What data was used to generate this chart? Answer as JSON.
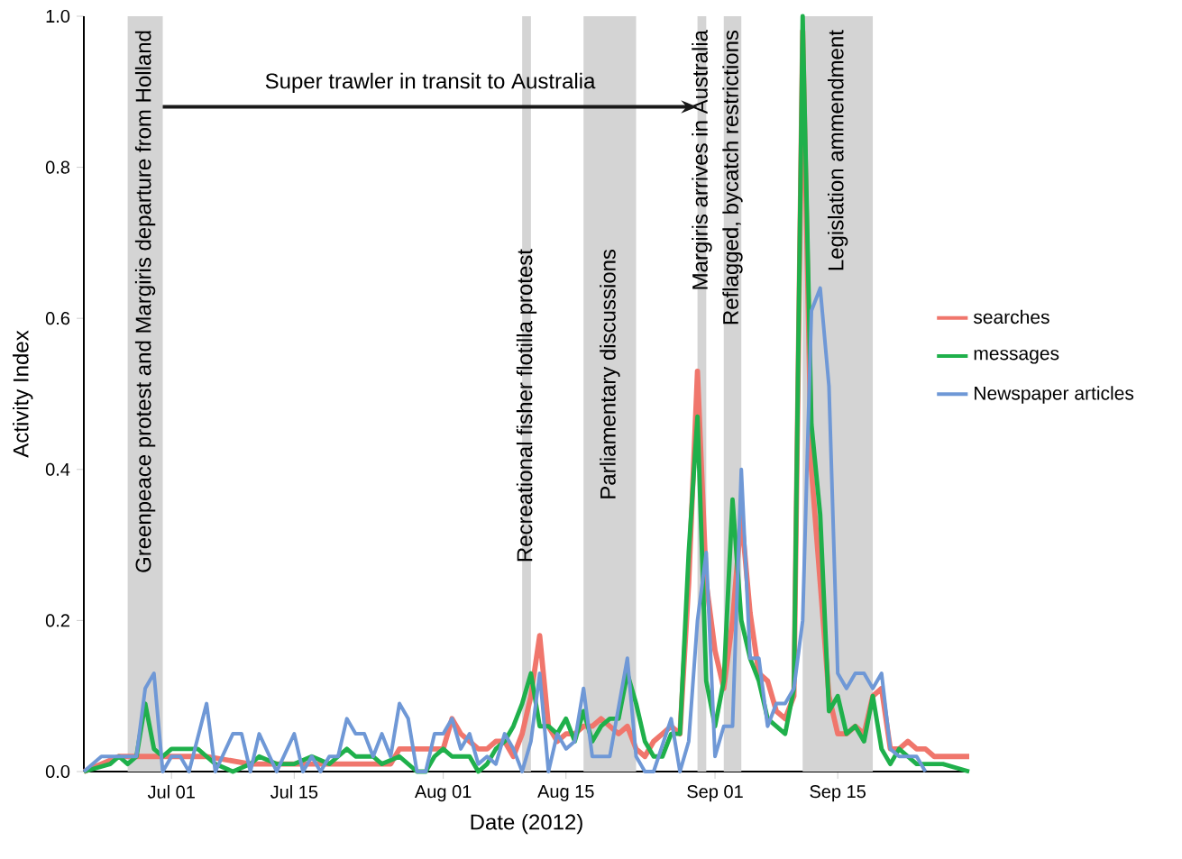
{
  "chart_data": {
    "type": "line",
    "xlabel": "Date (2012)",
    "ylabel": "Activity Index",
    "xlim": [
      "2012-06-21",
      "2012-09-30"
    ],
    "ylim": [
      0,
      1
    ],
    "xticks": [
      {
        "value": "2012-07-01",
        "label": "Jul 01"
      },
      {
        "value": "2012-07-15",
        "label": "Jul 15"
      },
      {
        "value": "2012-08-01",
        "label": "Aug 01"
      },
      {
        "value": "2012-08-15",
        "label": "Aug 15"
      },
      {
        "value": "2012-09-01",
        "label": "Sep 01"
      },
      {
        "value": "2012-09-15",
        "label": "Sep 15"
      }
    ],
    "yticks": [
      {
        "value": 0,
        "label": "0.0"
      },
      {
        "value": 0.2,
        "label": "0.2"
      },
      {
        "value": 0.4,
        "label": "0.4"
      },
      {
        "value": 0.6,
        "label": "0.6"
      },
      {
        "value": 0.8,
        "label": "0.8"
      },
      {
        "value": 1,
        "label": "1.0"
      }
    ],
    "legend": "right",
    "line_style": "solid",
    "bands": [
      {
        "axis": "x",
        "from": "2012-06-26",
        "to": "2012-06-30",
        "label": "Greenpeace protest and Margiris departure from Holland",
        "color": "#d4d4d4"
      },
      {
        "axis": "x",
        "from": "2012-08-10",
        "to": "2012-08-11",
        "label": "Recreational fisher flotilla protest",
        "color": "#d4d4d4"
      },
      {
        "axis": "x",
        "from": "2012-08-17",
        "to": "2012-08-23",
        "label": "Parliamentary discussions",
        "color": "#d4d4d4"
      },
      {
        "axis": "x",
        "from": "2012-08-30",
        "to": "2012-08-31",
        "label": "Margiris arrives in Australia",
        "color": "#d4d4d4"
      },
      {
        "axis": "x",
        "from": "2012-09-02",
        "to": "2012-09-04",
        "label": "Reflagged, bycatch restrictions",
        "color": "#d4d4d4"
      },
      {
        "axis": "x",
        "from": "2012-09-11",
        "to": "2012-09-19",
        "label": "Legislation ammendment",
        "color": "#d4d4d4"
      }
    ],
    "annotations": [
      "Super trawler in transit to Australia"
    ],
    "series": [
      {
        "name": "searches",
        "color": "#f0766c",
        "x": [
          "2012-06-21",
          "2012-06-23",
          "2012-06-25",
          "2012-06-30",
          "2012-07-05",
          "2012-07-10",
          "2012-07-15",
          "2012-07-20",
          "2012-07-26",
          "2012-07-27",
          "2012-07-31",
          "2012-08-01",
          "2012-08-02",
          "2012-08-03",
          "2012-08-04",
          "2012-08-05",
          "2012-08-06",
          "2012-08-07",
          "2012-08-08",
          "2012-08-09",
          "2012-08-10",
          "2012-08-11",
          "2012-08-12",
          "2012-08-13",
          "2012-08-14",
          "2012-08-15",
          "2012-08-16",
          "2012-08-17",
          "2012-08-18",
          "2012-08-19",
          "2012-08-20",
          "2012-08-21",
          "2012-08-22",
          "2012-08-23",
          "2012-08-24",
          "2012-08-25",
          "2012-08-26",
          "2012-08-27",
          "2012-08-28",
          "2012-08-29",
          "2012-08-30",
          "2012-08-31",
          "2012-09-01",
          "2012-09-02",
          "2012-09-03",
          "2012-09-04",
          "2012-09-05",
          "2012-09-06",
          "2012-09-07",
          "2012-09-08",
          "2012-09-09",
          "2012-09-10",
          "2012-09-11",
          "2012-09-12",
          "2012-09-13",
          "2012-09-14",
          "2012-09-15",
          "2012-09-16",
          "2012-09-17",
          "2012-09-18",
          "2012-09-19",
          "2012-09-20",
          "2012-09-21",
          "2012-09-22",
          "2012-09-23",
          "2012-09-24",
          "2012-09-25",
          "2012-09-26",
          "2012-09-30"
        ],
        "values": [
          0,
          0.01,
          0.02,
          0.02,
          0.02,
          0.01,
          0.01,
          0.01,
          0.01,
          0.03,
          0.03,
          0.03,
          0.07,
          0.05,
          0.04,
          0.03,
          0.03,
          0.04,
          0.04,
          0.02,
          0.05,
          0.1,
          0.18,
          0.06,
          0.04,
          0.05,
          0.05,
          0.06,
          0.06,
          0.07,
          0.06,
          0.05,
          0.06,
          0.03,
          0.02,
          0.04,
          0.05,
          0.06,
          0.05,
          0.25,
          0.53,
          0.25,
          0.16,
          0.11,
          0.2,
          0.34,
          0.21,
          0.13,
          0.12,
          0.08,
          0.07,
          0.1,
          0.98,
          0.4,
          0.25,
          0.1,
          0.05,
          0.05,
          0.06,
          0.05,
          0.1,
          0.11,
          0.03,
          0.03,
          0.04,
          0.03,
          0.03,
          0.02,
          0.02
        ]
      },
      {
        "name": "messages",
        "color": "#1fb04b",
        "x": [
          "2012-06-21",
          "2012-06-24",
          "2012-06-25",
          "2012-06-26",
          "2012-06-27",
          "2012-06-28",
          "2012-06-29",
          "2012-06-30",
          "2012-07-01",
          "2012-07-02",
          "2012-07-03",
          "2012-07-04",
          "2012-07-05",
          "2012-07-06",
          "2012-07-08",
          "2012-07-10",
          "2012-07-11",
          "2012-07-13",
          "2012-07-15",
          "2012-07-17",
          "2012-07-19",
          "2012-07-20",
          "2012-07-21",
          "2012-07-22",
          "2012-07-24",
          "2012-07-25",
          "2012-07-27",
          "2012-07-29",
          "2012-07-30",
          "2012-07-31",
          "2012-08-01",
          "2012-08-02",
          "2012-08-03",
          "2012-08-04",
          "2012-08-05",
          "2012-08-06",
          "2012-08-07",
          "2012-08-08",
          "2012-08-09",
          "2012-08-10",
          "2012-08-11",
          "2012-08-12",
          "2012-08-13",
          "2012-08-14",
          "2012-08-15",
          "2012-08-16",
          "2012-08-17",
          "2012-08-18",
          "2012-08-19",
          "2012-08-20",
          "2012-08-21",
          "2012-08-22",
          "2012-08-23",
          "2012-08-24",
          "2012-08-25",
          "2012-08-26",
          "2012-08-27",
          "2012-08-28",
          "2012-08-29",
          "2012-08-30",
          "2012-08-31",
          "2012-09-01",
          "2012-09-02",
          "2012-09-03",
          "2012-09-04",
          "2012-09-05",
          "2012-09-06",
          "2012-09-07",
          "2012-09-08",
          "2012-09-09",
          "2012-09-10",
          "2012-09-11",
          "2012-09-12",
          "2012-09-13",
          "2012-09-14",
          "2012-09-15",
          "2012-09-16",
          "2012-09-17",
          "2012-09-18",
          "2012-09-19",
          "2012-09-20",
          "2012-09-21",
          "2012-09-22",
          "2012-09-23",
          "2012-09-24",
          "2012-09-25",
          "2012-09-27",
          "2012-09-30"
        ],
        "values": [
          0,
          0.01,
          0.02,
          0.01,
          0.02,
          0.09,
          0.03,
          0.02,
          0.03,
          0.03,
          0.03,
          0.03,
          0.02,
          0.01,
          0,
          0.01,
          0.02,
          0.01,
          0.01,
          0.02,
          0.01,
          0.02,
          0.03,
          0.02,
          0.02,
          0.01,
          0.02,
          0,
          0,
          0.02,
          0.03,
          0.02,
          0.02,
          0.02,
          0,
          0.01,
          0.03,
          0.04,
          0.06,
          0.09,
          0.13,
          0.06,
          0.06,
          0.05,
          0.07,
          0.04,
          0.08,
          0.04,
          0.06,
          0.07,
          0.07,
          0.13,
          0.09,
          0.04,
          0.02,
          0.02,
          0.05,
          0.05,
          0.29,
          0.47,
          0.12,
          0.06,
          0.12,
          0.36,
          0.2,
          0.15,
          0.12,
          0.07,
          0.06,
          0.05,
          0.11,
          1,
          0.46,
          0.34,
          0.08,
          0.1,
          0.05,
          0.06,
          0.04,
          0.1,
          0.03,
          0.01,
          0.03,
          0.02,
          0.01,
          0.01,
          0.01,
          0
        ]
      },
      {
        "name": "Newspaper articles",
        "color": "#6f98d6",
        "x": [
          "2012-06-21",
          "2012-06-23",
          "2012-06-27",
          "2012-06-28",
          "2012-06-29",
          "2012-06-30",
          "2012-07-01",
          "2012-07-02",
          "2012-07-03",
          "2012-07-05",
          "2012-07-06",
          "2012-07-08",
          "2012-07-09",
          "2012-07-10",
          "2012-07-11",
          "2012-07-13",
          "2012-07-15",
          "2012-07-16",
          "2012-07-17",
          "2012-07-18",
          "2012-07-19",
          "2012-07-20",
          "2012-07-21",
          "2012-07-22",
          "2012-07-23",
          "2012-07-24",
          "2012-07-25",
          "2012-07-26",
          "2012-07-27",
          "2012-07-28",
          "2012-07-29",
          "2012-07-30",
          "2012-07-31",
          "2012-08-01",
          "2012-08-02",
          "2012-08-03",
          "2012-08-04",
          "2012-08-05",
          "2012-08-06",
          "2012-08-07",
          "2012-08-08",
          "2012-08-09",
          "2012-08-10",
          "2012-08-11",
          "2012-08-12",
          "2012-08-13",
          "2012-08-14",
          "2012-08-15",
          "2012-08-16",
          "2012-08-17",
          "2012-08-18",
          "2012-08-20",
          "2012-08-22",
          "2012-08-23",
          "2012-08-24",
          "2012-08-25",
          "2012-08-27",
          "2012-08-28",
          "2012-08-29",
          "2012-08-30",
          "2012-08-31",
          "2012-09-01",
          "2012-09-02",
          "2012-09-03",
          "2012-09-04",
          "2012-09-05",
          "2012-09-06",
          "2012-09-07",
          "2012-09-08",
          "2012-09-09",
          "2012-09-10",
          "2012-09-11",
          "2012-09-12",
          "2012-09-13",
          "2012-09-14",
          "2012-09-15",
          "2012-09-16",
          "2012-09-17",
          "2012-09-18",
          "2012-09-19",
          "2012-09-20",
          "2012-09-21",
          "2012-09-22",
          "2012-09-24",
          "2012-09-25"
        ],
        "values": [
          0,
          0.02,
          0.02,
          0.11,
          0.13,
          0,
          0.02,
          0.02,
          0,
          0.09,
          0,
          0.05,
          0.05,
          0,
          0.05,
          0,
          0.05,
          0,
          0.02,
          0,
          0.02,
          0.02,
          0.07,
          0.05,
          0.05,
          0.02,
          0.05,
          0.02,
          0.09,
          0.07,
          0,
          0,
          0.05,
          0.05,
          0.07,
          0.03,
          0.05,
          0.01,
          0.02,
          0.01,
          0.05,
          0.03,
          0,
          0.04,
          0.13,
          0,
          0.05,
          0.03,
          0.04,
          0.11,
          0.02,
          0.02,
          0.15,
          0.02,
          0,
          0,
          0.07,
          0,
          0.04,
          0.2,
          0.29,
          0.02,
          0.06,
          0.06,
          0.4,
          0.15,
          0.15,
          0.06,
          0.09,
          0.09,
          0.11,
          0.2,
          0.61,
          0.64,
          0.51,
          0.13,
          0.11,
          0.13,
          0.13,
          0.11,
          0.13,
          0.03,
          0.02,
          0.02,
          0
        ]
      }
    ]
  }
}
